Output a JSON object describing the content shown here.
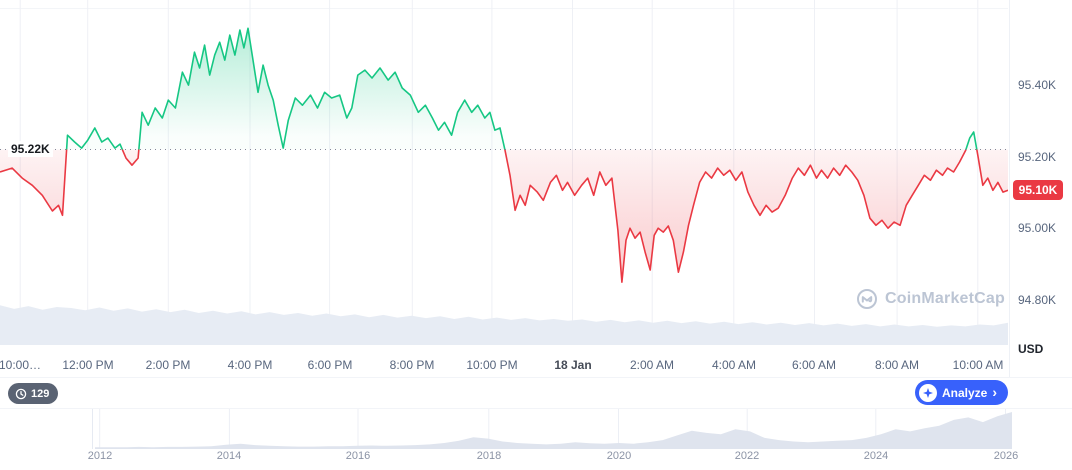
{
  "chart_data": [
    {
      "id": "main-price-chart",
      "type": "line",
      "unit": "USD",
      "baseline": 95.22,
      "baseline_label": "95.22K",
      "last_price": 95.106,
      "last_price_label": "95.10K",
      "up_color": "#16c784",
      "down_color": "#ea3943",
      "last_price_bg": "#ea3943",
      "ylim": [
        94.665,
        95.638
      ],
      "y_ticks": [
        {
          "value": 95.4,
          "label": "95.40K"
        },
        {
          "value": 95.2,
          "label": "95.20K"
        },
        {
          "value": 95.0,
          "label": "95.00K"
        },
        {
          "value": 94.8,
          "label": "94.80K"
        }
      ],
      "x_ticks": [
        {
          "label": "10:00…",
          "pos": 0.02
        },
        {
          "label": "12:00 PM",
          "pos": 0.087
        },
        {
          "label": "2:00 PM",
          "pos": 0.167
        },
        {
          "label": "4:00 PM",
          "pos": 0.248
        },
        {
          "label": "6:00 PM",
          "pos": 0.327
        },
        {
          "label": "8:00 PM",
          "pos": 0.409
        },
        {
          "label": "10:00 PM",
          "pos": 0.488
        },
        {
          "label": "18 Jan",
          "pos": 0.568,
          "strong": true
        },
        {
          "label": "2:00 AM",
          "pos": 0.647
        },
        {
          "label": "4:00 AM",
          "pos": 0.728
        },
        {
          "label": "6:00 AM",
          "pos": 0.808
        },
        {
          "label": "8:00 AM",
          "pos": 0.89
        },
        {
          "label": "10:00 AM",
          "pos": 0.97
        }
      ],
      "series": [
        {
          "name": "price",
          "points": [
            [
              0.0,
              95.157
            ],
            [
              0.012,
              95.168
            ],
            [
              0.022,
              95.14
            ],
            [
              0.032,
              95.12
            ],
            [
              0.042,
              95.092
            ],
            [
              0.052,
              95.048
            ],
            [
              0.058,
              95.064
            ],
            [
              0.062,
              95.036
            ],
            [
              0.067,
              95.26
            ],
            [
              0.074,
              95.241
            ],
            [
              0.081,
              95.224
            ],
            [
              0.087,
              95.246
            ],
            [
              0.094,
              95.28
            ],
            [
              0.101,
              95.241
            ],
            [
              0.107,
              95.252
            ],
            [
              0.114,
              95.224
            ],
            [
              0.119,
              95.235
            ],
            [
              0.125,
              95.196
            ],
            [
              0.131,
              95.176
            ],
            [
              0.137,
              95.196
            ],
            [
              0.141,
              95.324
            ],
            [
              0.147,
              95.288
            ],
            [
              0.154,
              95.336
            ],
            [
              0.161,
              95.308
            ],
            [
              0.167,
              95.358
            ],
            [
              0.174,
              95.336
            ],
            [
              0.181,
              95.436
            ],
            [
              0.187,
              95.4
            ],
            [
              0.193,
              95.492
            ],
            [
              0.198,
              95.448
            ],
            [
              0.203,
              95.512
            ],
            [
              0.208,
              95.428
            ],
            [
              0.213,
              95.484
            ],
            [
              0.218,
              95.52
            ],
            [
              0.223,
              95.47
            ],
            [
              0.228,
              95.54
            ],
            [
              0.233,
              95.484
            ],
            [
              0.238,
              95.554
            ],
            [
              0.242,
              95.504
            ],
            [
              0.246,
              95.559
            ],
            [
              0.251,
              95.47
            ],
            [
              0.256,
              95.38
            ],
            [
              0.261,
              95.456
            ],
            [
              0.266,
              95.4
            ],
            [
              0.271,
              95.358
            ],
            [
              0.276,
              95.288
            ],
            [
              0.281,
              95.224
            ],
            [
              0.286,
              95.302
            ],
            [
              0.293,
              95.364
            ],
            [
              0.3,
              95.344
            ],
            [
              0.308,
              95.372
            ],
            [
              0.315,
              95.336
            ],
            [
              0.322,
              95.38
            ],
            [
              0.329,
              95.364
            ],
            [
              0.337,
              95.372
            ],
            [
              0.344,
              95.308
            ],
            [
              0.349,
              95.336
            ],
            [
              0.355,
              95.428
            ],
            [
              0.362,
              95.442
            ],
            [
              0.369,
              95.42
            ],
            [
              0.377,
              95.448
            ],
            [
              0.385,
              95.414
            ],
            [
              0.392,
              95.436
            ],
            [
              0.399,
              95.392
            ],
            [
              0.407,
              95.372
            ],
            [
              0.415,
              95.324
            ],
            [
              0.422,
              95.344
            ],
            [
              0.429,
              95.308
            ],
            [
              0.435,
              95.274
            ],
            [
              0.441,
              95.296
            ],
            [
              0.448,
              95.26
            ],
            [
              0.454,
              95.324
            ],
            [
              0.461,
              95.358
            ],
            [
              0.468,
              95.324
            ],
            [
              0.474,
              95.344
            ],
            [
              0.481,
              95.308
            ],
            [
              0.486,
              95.324
            ],
            [
              0.491,
              95.274
            ],
            [
              0.496,
              95.28
            ],
            [
              0.501,
              95.218
            ],
            [
              0.506,
              95.148
            ],
            [
              0.511,
              95.05
            ],
            [
              0.516,
              95.092
            ],
            [
              0.521,
              95.064
            ],
            [
              0.526,
              95.12
            ],
            [
              0.533,
              95.101
            ],
            [
              0.539,
              95.078
            ],
            [
              0.546,
              95.128
            ],
            [
              0.552,
              95.148
            ],
            [
              0.558,
              95.106
            ],
            [
              0.563,
              95.128
            ],
            [
              0.57,
              95.092
            ],
            [
              0.577,
              95.12
            ],
            [
              0.583,
              95.14
            ],
            [
              0.589,
              95.092
            ],
            [
              0.595,
              95.157
            ],
            [
              0.601,
              95.12
            ],
            [
              0.607,
              95.14
            ],
            [
              0.613,
              94.994
            ],
            [
              0.617,
              94.849
            ],
            [
              0.621,
              94.966
            ],
            [
              0.625,
              95.0
            ],
            [
              0.63,
              94.972
            ],
            [
              0.635,
              94.989
            ],
            [
              0.64,
              94.933
            ],
            [
              0.645,
              94.883
            ],
            [
              0.649,
              94.98
            ],
            [
              0.653,
              95.0
            ],
            [
              0.658,
              94.989
            ],
            [
              0.663,
              95.006
            ],
            [
              0.668,
              94.966
            ],
            [
              0.673,
              94.877
            ],
            [
              0.678,
              94.933
            ],
            [
              0.683,
              95.008
            ],
            [
              0.688,
              95.064
            ],
            [
              0.694,
              95.128
            ],
            [
              0.7,
              95.157
            ],
            [
              0.706,
              95.14
            ],
            [
              0.712,
              95.168
            ],
            [
              0.718,
              95.148
            ],
            [
              0.724,
              95.162
            ],
            [
              0.73,
              95.134
            ],
            [
              0.736,
              95.157
            ],
            [
              0.742,
              95.101
            ],
            [
              0.748,
              95.064
            ],
            [
              0.754,
              95.036
            ],
            [
              0.76,
              95.064
            ],
            [
              0.766,
              95.045
            ],
            [
              0.772,
              95.056
            ],
            [
              0.779,
              95.092
            ],
            [
              0.786,
              95.14
            ],
            [
              0.792,
              95.168
            ],
            [
              0.798,
              95.148
            ],
            [
              0.804,
              95.176
            ],
            [
              0.81,
              95.14
            ],
            [
              0.815,
              95.162
            ],
            [
              0.821,
              95.14
            ],
            [
              0.827,
              95.168
            ],
            [
              0.833,
              95.148
            ],
            [
              0.839,
              95.176
            ],
            [
              0.845,
              95.157
            ],
            [
              0.851,
              95.134
            ],
            [
              0.857,
              95.092
            ],
            [
              0.863,
              95.028
            ],
            [
              0.869,
              95.008
            ],
            [
              0.875,
              95.022
            ],
            [
              0.881,
              95.0
            ],
            [
              0.887,
              95.017
            ],
            [
              0.893,
              95.008
            ],
            [
              0.899,
              95.064
            ],
            [
              0.905,
              95.092
            ],
            [
              0.911,
              95.12
            ],
            [
              0.917,
              95.148
            ],
            [
              0.923,
              95.134
            ],
            [
              0.929,
              95.162
            ],
            [
              0.935,
              95.148
            ],
            [
              0.94,
              95.168
            ],
            [
              0.946,
              95.157
            ],
            [
              0.952,
              95.185
            ],
            [
              0.958,
              95.218
            ],
            [
              0.962,
              95.252
            ],
            [
              0.966,
              95.269
            ],
            [
              0.97,
              95.204
            ],
            [
              0.975,
              95.12
            ],
            [
              0.98,
              95.14
            ],
            [
              0.985,
              95.106
            ],
            [
              0.99,
              95.128
            ],
            [
              0.995,
              95.101
            ],
            [
              1.0,
              95.106
            ]
          ]
        }
      ],
      "volume": [
        0.8,
        0.72,
        0.78,
        0.7,
        0.76,
        0.74,
        0.69,
        0.75,
        0.68,
        0.73,
        0.66,
        0.71,
        0.65,
        0.7,
        0.63,
        0.68,
        0.62,
        0.67,
        0.6,
        0.65,
        0.59,
        0.63,
        0.57,
        0.62,
        0.56,
        0.6,
        0.54,
        0.59,
        0.53,
        0.57,
        0.52,
        0.56,
        0.5,
        0.55,
        0.49,
        0.53,
        0.48,
        0.52,
        0.47,
        0.5,
        0.46,
        0.49,
        0.44,
        0.48,
        0.43,
        0.47,
        0.42,
        0.46,
        0.41,
        0.45,
        0.4,
        0.44,
        0.39,
        0.43,
        0.38,
        0.42,
        0.37,
        0.41,
        0.36,
        0.4,
        0.35,
        0.39,
        0.34,
        0.38,
        0.34,
        0.37,
        0.33,
        0.36,
        0.34,
        0.38,
        0.36,
        0.42
      ],
      "volume_color": "#e7ecf4"
    },
    {
      "id": "timeline-brush",
      "type": "area",
      "fill_color": "#dfe4ee",
      "x_ticks": [
        {
          "label": "2012",
          "pos": 0.093
        },
        {
          "label": "2014",
          "pos": 0.214
        },
        {
          "label": "2016",
          "pos": 0.334
        },
        {
          "label": "2018",
          "pos": 0.456
        },
        {
          "label": "2020",
          "pos": 0.577
        },
        {
          "label": "2022",
          "pos": 0.697
        },
        {
          "label": "2024",
          "pos": 0.817
        },
        {
          "label": "2026",
          "pos": 0.938
        }
      ],
      "values": [
        0.02,
        0.02,
        0.02,
        0.03,
        0.02,
        0.03,
        0.03,
        0.04,
        0.05,
        0.09,
        0.12,
        0.08,
        0.06,
        0.05,
        0.04,
        0.04,
        0.05,
        0.05,
        0.06,
        0.07,
        0.06,
        0.07,
        0.08,
        0.1,
        0.14,
        0.2,
        0.3,
        0.26,
        0.18,
        0.14,
        0.12,
        0.1,
        0.12,
        0.16,
        0.13,
        0.12,
        0.14,
        0.12,
        0.16,
        0.22,
        0.35,
        0.48,
        0.42,
        0.38,
        0.52,
        0.46,
        0.28,
        0.22,
        0.18,
        0.16,
        0.18,
        0.2,
        0.22,
        0.28,
        0.38,
        0.52,
        0.46,
        0.55,
        0.62,
        0.78,
        0.85,
        0.72,
        0.88,
        1.0
      ]
    }
  ],
  "watermark": {
    "text": "CoinMarketCap"
  },
  "controls": {
    "count": "129",
    "analyze_label": "Analyze",
    "analyze_chevron": "›",
    "accent_color": "#3861fb"
  }
}
